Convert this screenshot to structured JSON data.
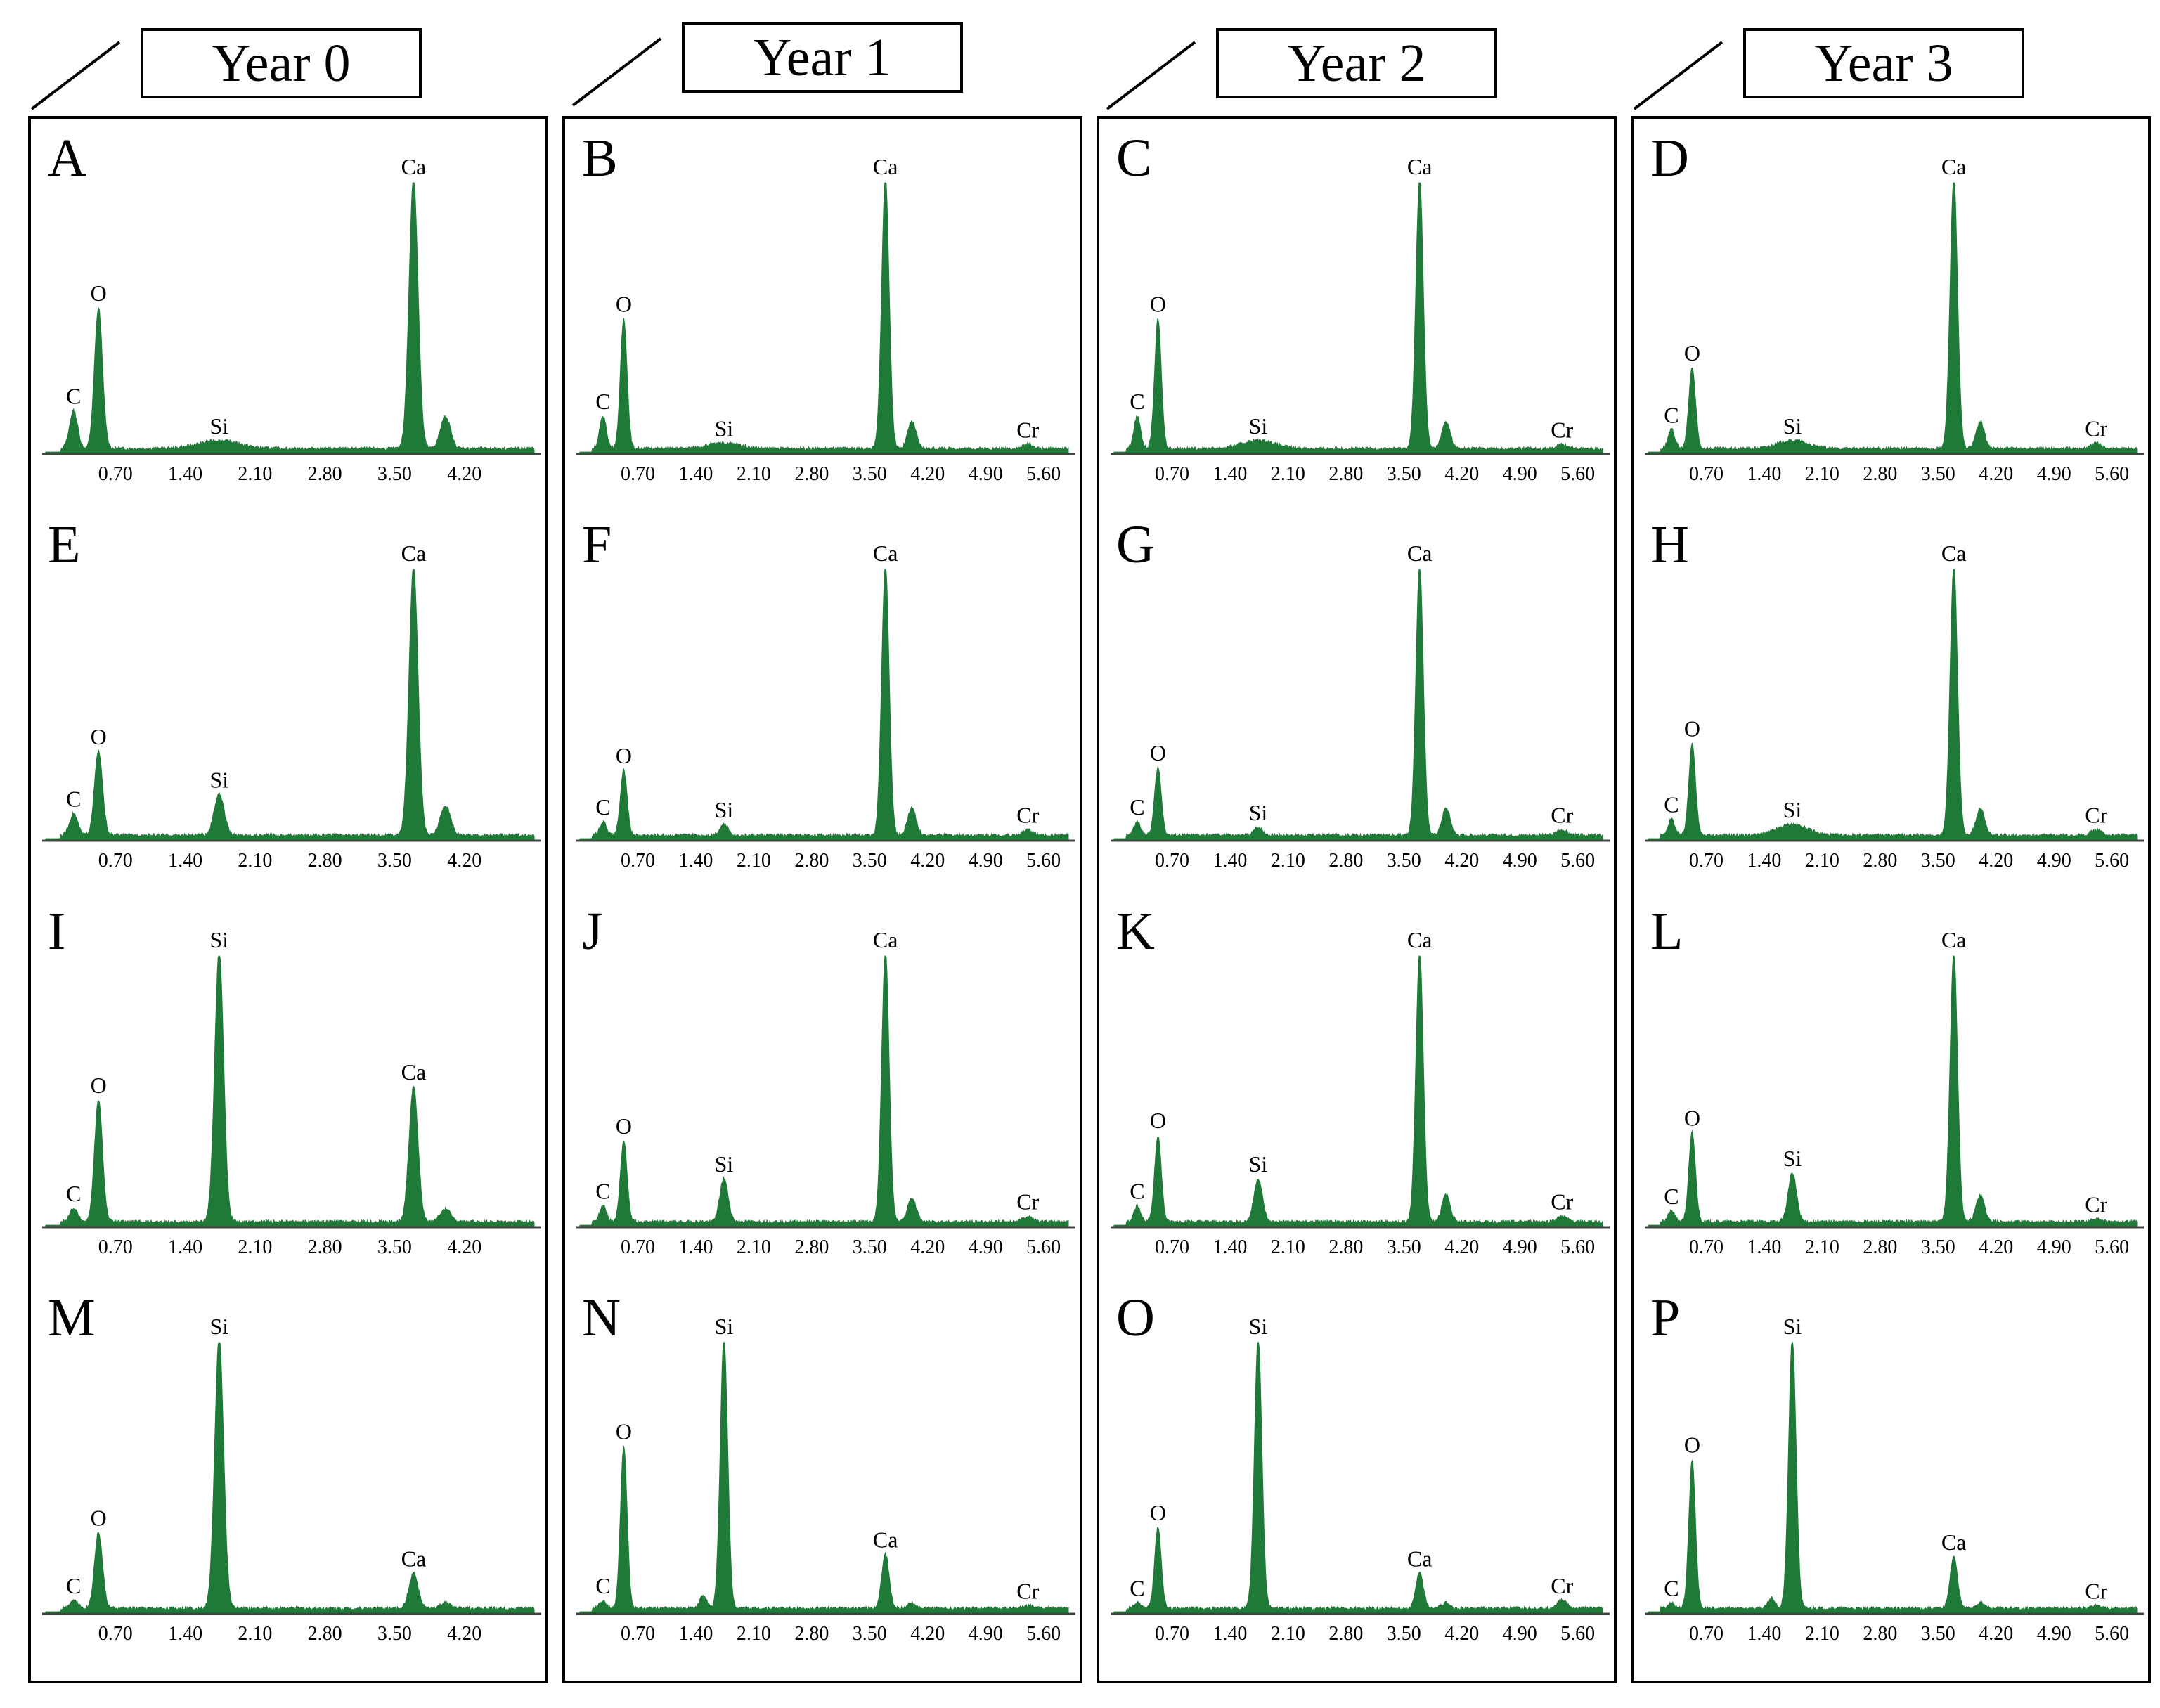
{
  "colors": {
    "spectrum": "#1E7A36",
    "axis": "#444444",
    "frame": "#000000"
  },
  "years": [
    "Year 0",
    "Year 1",
    "Year 2",
    "Year 3"
  ],
  "chart_data": [
    {
      "panel": "A",
      "type": "area",
      "xlabel": "",
      "ylabel": "",
      "xlim": [
        0,
        4.9
      ],
      "ticks": [
        "0.70",
        "1.40",
        "2.10",
        "2.80",
        "3.50",
        "4.20"
      ],
      "peaks": [
        {
          "label": "C",
          "energy": 0.28,
          "height": 0.14,
          "width": 0.04
        },
        {
          "label": "O",
          "energy": 0.53,
          "height": 0.52,
          "width": 0.04
        },
        {
          "label": "Si",
          "energy": 1.74,
          "height": 0.03,
          "width": 0.2
        },
        {
          "label": "Ca",
          "energy": 3.69,
          "height": 1.0,
          "width": 0.045
        },
        {
          "label": "",
          "energy": 4.01,
          "height": 0.12,
          "width": 0.05
        }
      ]
    },
    {
      "panel": "B",
      "type": "area",
      "xlabel": "",
      "ylabel": "",
      "xlim": [
        0,
        5.9
      ],
      "ticks": [
        "0.70",
        "1.40",
        "2.10",
        "2.80",
        "3.50",
        "4.20",
        "4.90",
        "5.60"
      ],
      "peaks": [
        {
          "label": "C",
          "energy": 0.28,
          "height": 0.12,
          "width": 0.04
        },
        {
          "label": "O",
          "energy": 0.53,
          "height": 0.48,
          "width": 0.04
        },
        {
          "label": "Si",
          "energy": 1.74,
          "height": 0.02,
          "width": 0.2
        },
        {
          "label": "Ca",
          "energy": 3.69,
          "height": 1.0,
          "width": 0.045
        },
        {
          "label": "",
          "energy": 4.01,
          "height": 0.1,
          "width": 0.05
        },
        {
          "label": "Cr",
          "energy": 5.41,
          "height": 0.015,
          "width": 0.06
        }
      ]
    },
    {
      "panel": "C",
      "type": "area",
      "xlabel": "",
      "ylabel": "",
      "xlim": [
        0,
        5.9
      ],
      "ticks": [
        "0.70",
        "1.40",
        "2.10",
        "2.80",
        "3.50",
        "4.20",
        "4.90",
        "5.60"
      ],
      "peaks": [
        {
          "label": "C",
          "energy": 0.28,
          "height": 0.12,
          "width": 0.04
        },
        {
          "label": "O",
          "energy": 0.53,
          "height": 0.48,
          "width": 0.04
        },
        {
          "label": "Si",
          "energy": 1.74,
          "height": 0.03,
          "width": 0.2
        },
        {
          "label": "Ca",
          "energy": 3.69,
          "height": 1.0,
          "width": 0.045
        },
        {
          "label": "",
          "energy": 4.01,
          "height": 0.1,
          "width": 0.05
        },
        {
          "label": "Cr",
          "energy": 5.41,
          "height": 0.015,
          "width": 0.06
        }
      ]
    },
    {
      "panel": "D",
      "type": "area",
      "xlabel": "",
      "ylabel": "",
      "xlim": [
        0,
        5.9
      ],
      "ticks": [
        "0.70",
        "1.40",
        "2.10",
        "2.80",
        "3.50",
        "4.20",
        "4.90",
        "5.60"
      ],
      "peaks": [
        {
          "label": "C",
          "energy": 0.28,
          "height": 0.07,
          "width": 0.04
        },
        {
          "label": "O",
          "energy": 0.53,
          "height": 0.3,
          "width": 0.04
        },
        {
          "label": "Si",
          "energy": 1.74,
          "height": 0.03,
          "width": 0.18
        },
        {
          "label": "Ca",
          "energy": 3.69,
          "height": 1.0,
          "width": 0.045
        },
        {
          "label": "",
          "energy": 4.01,
          "height": 0.1,
          "width": 0.05
        },
        {
          "label": "Cr",
          "energy": 5.41,
          "height": 0.02,
          "width": 0.06
        }
      ]
    },
    {
      "panel": "E",
      "type": "area",
      "xlabel": "",
      "ylabel": "",
      "xlim": [
        0,
        4.9
      ],
      "ticks": [
        "0.70",
        "1.40",
        "2.10",
        "2.80",
        "3.50",
        "4.20"
      ],
      "peaks": [
        {
          "label": "C",
          "energy": 0.28,
          "height": 0.08,
          "width": 0.04
        },
        {
          "label": "O",
          "energy": 0.53,
          "height": 0.31,
          "width": 0.04
        },
        {
          "label": "Si",
          "energy": 1.74,
          "height": 0.15,
          "width": 0.05
        },
        {
          "label": "Ca",
          "energy": 3.69,
          "height": 1.0,
          "width": 0.045
        },
        {
          "label": "",
          "energy": 4.01,
          "height": 0.11,
          "width": 0.05
        }
      ]
    },
    {
      "panel": "F",
      "type": "area",
      "xlabel": "",
      "ylabel": "",
      "xlim": [
        0,
        5.9
      ],
      "ticks": [
        "0.70",
        "1.40",
        "2.10",
        "2.80",
        "3.50",
        "4.20",
        "4.90",
        "5.60"
      ],
      "peaks": [
        {
          "label": "C",
          "energy": 0.28,
          "height": 0.05,
          "width": 0.04
        },
        {
          "label": "O",
          "energy": 0.53,
          "height": 0.24,
          "width": 0.04
        },
        {
          "label": "Si",
          "energy": 1.74,
          "height": 0.04,
          "width": 0.05
        },
        {
          "label": "Ca",
          "energy": 3.69,
          "height": 1.0,
          "width": 0.045
        },
        {
          "label": "",
          "energy": 4.01,
          "height": 0.1,
          "width": 0.05
        },
        {
          "label": "Cr",
          "energy": 5.41,
          "height": 0.02,
          "width": 0.06
        }
      ]
    },
    {
      "panel": "G",
      "type": "area",
      "xlabel": "",
      "ylabel": "",
      "xlim": [
        0,
        5.9
      ],
      "ticks": [
        "0.70",
        "1.40",
        "2.10",
        "2.80",
        "3.50",
        "4.20",
        "4.90",
        "5.60"
      ],
      "peaks": [
        {
          "label": "C",
          "energy": 0.28,
          "height": 0.05,
          "width": 0.04
        },
        {
          "label": "O",
          "energy": 0.53,
          "height": 0.25,
          "width": 0.04
        },
        {
          "label": "Si",
          "energy": 1.74,
          "height": 0.03,
          "width": 0.05
        },
        {
          "label": "Ca",
          "energy": 3.69,
          "height": 1.0,
          "width": 0.045
        },
        {
          "label": "",
          "energy": 4.01,
          "height": 0.1,
          "width": 0.05
        },
        {
          "label": "Cr",
          "energy": 5.41,
          "height": 0.02,
          "width": 0.06
        }
      ]
    },
    {
      "panel": "H",
      "type": "area",
      "xlabel": "",
      "ylabel": "",
      "xlim": [
        0,
        5.9
      ],
      "ticks": [
        "0.70",
        "1.40",
        "2.10",
        "2.80",
        "3.50",
        "4.20",
        "4.90",
        "5.60"
      ],
      "peaks": [
        {
          "label": "C",
          "energy": 0.28,
          "height": 0.06,
          "width": 0.04
        },
        {
          "label": "O",
          "energy": 0.53,
          "height": 0.34,
          "width": 0.04
        },
        {
          "label": "Si",
          "energy": 1.74,
          "height": 0.04,
          "width": 0.18
        },
        {
          "label": "Ca",
          "energy": 3.69,
          "height": 1.0,
          "width": 0.045
        },
        {
          "label": "",
          "energy": 4.01,
          "height": 0.1,
          "width": 0.05
        },
        {
          "label": "Cr",
          "energy": 5.41,
          "height": 0.02,
          "width": 0.06
        }
      ]
    },
    {
      "panel": "I",
      "type": "area",
      "xlabel": "",
      "ylabel": "",
      "xlim": [
        0,
        4.9
      ],
      "ticks": [
        "0.70",
        "1.40",
        "2.10",
        "2.80",
        "3.50",
        "4.20"
      ],
      "peaks": [
        {
          "label": "C",
          "energy": 0.28,
          "height": 0.05,
          "width": 0.04
        },
        {
          "label": "O",
          "energy": 0.53,
          "height": 0.45,
          "width": 0.04
        },
        {
          "label": "Si",
          "energy": 1.74,
          "height": 1.0,
          "width": 0.045
        },
        {
          "label": "Ca",
          "energy": 3.69,
          "height": 0.5,
          "width": 0.045
        },
        {
          "label": "",
          "energy": 4.01,
          "height": 0.05,
          "width": 0.05
        }
      ]
    },
    {
      "panel": "J",
      "type": "area",
      "xlabel": "",
      "ylabel": "",
      "xlim": [
        0,
        5.9
      ],
      "ticks": [
        "0.70",
        "1.40",
        "2.10",
        "2.80",
        "3.50",
        "4.20",
        "4.90",
        "5.60"
      ],
      "peaks": [
        {
          "label": "C",
          "energy": 0.28,
          "height": 0.06,
          "width": 0.04
        },
        {
          "label": "O",
          "energy": 0.53,
          "height": 0.3,
          "width": 0.04
        },
        {
          "label": "Si",
          "energy": 1.74,
          "height": 0.16,
          "width": 0.05
        },
        {
          "label": "Ca",
          "energy": 3.69,
          "height": 1.0,
          "width": 0.045
        },
        {
          "label": "",
          "energy": 4.01,
          "height": 0.09,
          "width": 0.05
        },
        {
          "label": "Cr",
          "energy": 5.41,
          "height": 0.02,
          "width": 0.06
        }
      ]
    },
    {
      "panel": "K",
      "type": "area",
      "xlabel": "",
      "ylabel": "",
      "xlim": [
        0,
        5.9
      ],
      "ticks": [
        "0.70",
        "1.40",
        "2.10",
        "2.80",
        "3.50",
        "4.20",
        "4.90",
        "5.60"
      ],
      "peaks": [
        {
          "label": "C",
          "energy": 0.28,
          "height": 0.06,
          "width": 0.04
        },
        {
          "label": "O",
          "energy": 0.53,
          "height": 0.32,
          "width": 0.04
        },
        {
          "label": "Si",
          "energy": 1.74,
          "height": 0.16,
          "width": 0.05
        },
        {
          "label": "Ca",
          "energy": 3.69,
          "height": 1.0,
          "width": 0.045
        },
        {
          "label": "",
          "energy": 4.01,
          "height": 0.1,
          "width": 0.05
        },
        {
          "label": "Cr",
          "energy": 5.41,
          "height": 0.02,
          "width": 0.06
        }
      ]
    },
    {
      "panel": "L",
      "type": "area",
      "xlabel": "",
      "ylabel": "",
      "xlim": [
        0,
        5.9
      ],
      "ticks": [
        "0.70",
        "1.40",
        "2.10",
        "2.80",
        "3.50",
        "4.20",
        "4.90",
        "5.60"
      ],
      "peaks": [
        {
          "label": "C",
          "energy": 0.28,
          "height": 0.04,
          "width": 0.04
        },
        {
          "label": "O",
          "energy": 0.53,
          "height": 0.33,
          "width": 0.04
        },
        {
          "label": "Si",
          "energy": 1.74,
          "height": 0.18,
          "width": 0.05
        },
        {
          "label": "Ca",
          "energy": 3.69,
          "height": 1.0,
          "width": 0.045
        },
        {
          "label": "",
          "energy": 4.01,
          "height": 0.1,
          "width": 0.05
        },
        {
          "label": "Cr",
          "energy": 5.41,
          "height": 0.01,
          "width": 0.06
        }
      ]
    },
    {
      "panel": "M",
      "type": "area",
      "xlabel": "",
      "ylabel": "",
      "xlim": [
        0,
        4.9
      ],
      "ticks": [
        "0.70",
        "1.40",
        "2.10",
        "2.80",
        "3.50",
        "4.20"
      ],
      "peaks": [
        {
          "label": "C",
          "energy": 0.28,
          "height": 0.03,
          "width": 0.04
        },
        {
          "label": "O",
          "energy": 0.53,
          "height": 0.28,
          "width": 0.04
        },
        {
          "label": "Si",
          "energy": 1.74,
          "height": 1.0,
          "width": 0.045
        },
        {
          "label": "Ca",
          "energy": 3.69,
          "height": 0.13,
          "width": 0.045
        },
        {
          "label": "",
          "energy": 4.01,
          "height": 0.02,
          "width": 0.05
        }
      ]
    },
    {
      "panel": "N",
      "type": "area",
      "xlabel": "",
      "ylabel": "",
      "xlim": [
        0,
        5.9
      ],
      "ticks": [
        "0.70",
        "1.40",
        "2.10",
        "2.80",
        "3.50",
        "4.20",
        "4.90",
        "5.60"
      ],
      "peaks": [
        {
          "label": "C",
          "energy": 0.28,
          "height": 0.03,
          "width": 0.04
        },
        {
          "label": "O",
          "energy": 0.53,
          "height": 0.6,
          "width": 0.04
        },
        {
          "label": "",
          "energy": 1.49,
          "height": 0.05,
          "width": 0.04
        },
        {
          "label": "Si",
          "energy": 1.74,
          "height": 1.0,
          "width": 0.045
        },
        {
          "label": "Ca",
          "energy": 3.69,
          "height": 0.2,
          "width": 0.045
        },
        {
          "label": "",
          "energy": 4.01,
          "height": 0.02,
          "width": 0.05
        },
        {
          "label": "Cr",
          "energy": 5.41,
          "height": 0.01,
          "width": 0.06
        }
      ]
    },
    {
      "panel": "O",
      "type": "area",
      "xlabel": "",
      "ylabel": "",
      "xlim": [
        0,
        5.9
      ],
      "ticks": [
        "0.70",
        "1.40",
        "2.10",
        "2.80",
        "3.50",
        "4.20",
        "4.90",
        "5.60"
      ],
      "peaks": [
        {
          "label": "C",
          "energy": 0.28,
          "height": 0.02,
          "width": 0.04
        },
        {
          "label": "O",
          "energy": 0.53,
          "height": 0.3,
          "width": 0.04
        },
        {
          "label": "Si",
          "energy": 1.74,
          "height": 1.0,
          "width": 0.045
        },
        {
          "label": "Ca",
          "energy": 3.69,
          "height": 0.13,
          "width": 0.045
        },
        {
          "label": "",
          "energy": 4.01,
          "height": 0.02,
          "width": 0.05
        },
        {
          "label": "Cr",
          "energy": 5.41,
          "height": 0.03,
          "width": 0.06
        }
      ]
    },
    {
      "panel": "P",
      "type": "area",
      "xlabel": "",
      "ylabel": "",
      "xlim": [
        0,
        5.9
      ],
      "ticks": [
        "0.70",
        "1.40",
        "2.10",
        "2.80",
        "3.50",
        "4.20",
        "4.90",
        "5.60"
      ],
      "peaks": [
        {
          "label": "C",
          "energy": 0.28,
          "height": 0.02,
          "width": 0.04
        },
        {
          "label": "O",
          "energy": 0.53,
          "height": 0.55,
          "width": 0.04
        },
        {
          "label": "",
          "energy": 1.49,
          "height": 0.04,
          "width": 0.04
        },
        {
          "label": "Si",
          "energy": 1.74,
          "height": 1.0,
          "width": 0.045
        },
        {
          "label": "Ca",
          "energy": 3.69,
          "height": 0.19,
          "width": 0.045
        },
        {
          "label": "",
          "energy": 4.01,
          "height": 0.02,
          "width": 0.05
        },
        {
          "label": "Cr",
          "energy": 5.41,
          "height": 0.01,
          "width": 0.06
        }
      ]
    }
  ]
}
